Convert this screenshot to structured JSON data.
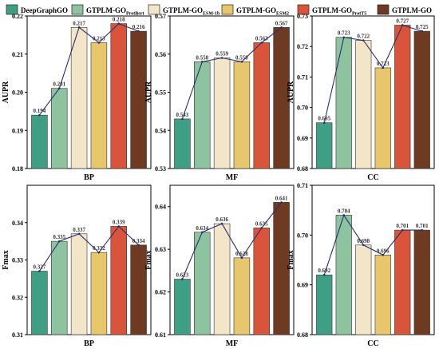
{
  "colors": [
    "#3f9f84",
    "#8ec3a0",
    "#f3e6c8",
    "#e8c66c",
    "#d9543a",
    "#6e3b22"
  ],
  "legend": [
    {
      "main": "DeepGraphGO",
      "sub": ""
    },
    {
      "main": "GTPLM-GO",
      "sub": "ProtBert"
    },
    {
      "main": "GTPLM-GO",
      "sub": "ESM-1b"
    },
    {
      "main": "GTPLM-GO",
      "sub": "ESM2"
    },
    {
      "main": "GTPLM-GO",
      "sub": "ProtT5"
    },
    {
      "main": "GTPLM-GO",
      "sub": ""
    }
  ],
  "chart_data": [
    {
      "type": "bar",
      "xlabel": "BP",
      "ylabel": "AUPR",
      "ylim": [
        0.18,
        0.22
      ],
      "yticks": [
        "0.18",
        "0.19",
        "0.20",
        "0.21",
        "0.22"
      ],
      "values": [
        0.194,
        0.201,
        0.217,
        0.213,
        0.218,
        0.216
      ],
      "labels": [
        "0.194",
        "0.201",
        "0.217",
        "0.213",
        "0.218",
        "0.216"
      ]
    },
    {
      "type": "bar",
      "xlabel": "MF",
      "ylabel": "AUPR",
      "ylim": [
        0.53,
        0.57
      ],
      "yticks": [
        "0.53",
        "0.54",
        "0.55",
        "0.56",
        "0.57"
      ],
      "values": [
        0.543,
        0.558,
        0.559,
        0.558,
        0.563,
        0.567
      ],
      "labels": [
        "0.543",
        "0.558",
        "0.559",
        "0.558",
        "0.563",
        "0.567"
      ]
    },
    {
      "type": "bar",
      "xlabel": "CC",
      "ylabel": "AUPR",
      "ylim": [
        0.68,
        0.73
      ],
      "yticks": [
        "0.68",
        "0.69",
        "0.70",
        "0.71",
        "0.72",
        "0.73"
      ],
      "values": [
        0.695,
        0.723,
        0.722,
        0.713,
        0.727,
        0.725
      ],
      "labels": [
        "0.695",
        "0.723",
        "0.722",
        "0.713",
        "0.727",
        "0.725"
      ]
    },
    {
      "type": "bar",
      "xlabel": "BP",
      "ylabel": "Fmax",
      "ylim": [
        0.31,
        0.35
      ],
      "yticks": [
        "0.31",
        "0.32",
        "0.33",
        "0.34"
      ],
      "values": [
        0.327,
        0.335,
        0.337,
        0.332,
        0.339,
        0.334
      ],
      "labels": [
        "0.327",
        "0.335",
        "0.337",
        "0.332",
        "0.339",
        "0.334"
      ]
    },
    {
      "type": "bar",
      "xlabel": "MF",
      "ylabel": "Fmax",
      "ylim": [
        0.61,
        0.645
      ],
      "yticks": [
        "0.61",
        "0.62",
        "0.63",
        "0.64"
      ],
      "values": [
        0.623,
        0.634,
        0.636,
        0.628,
        0.635,
        0.641
      ],
      "labels": [
        "0.623",
        "0.634",
        "0.636",
        "0.628",
        "0.635",
        "0.641"
      ]
    },
    {
      "type": "bar",
      "xlabel": "CC",
      "ylabel": "Fmax",
      "ylim": [
        0.68,
        0.71
      ],
      "yticks": [
        "0.68",
        "0.69",
        "0.70",
        "0.71"
      ],
      "values": [
        0.692,
        0.704,
        0.698,
        0.696,
        0.701,
        0.701
      ],
      "labels": [
        "0.692",
        "0.704",
        "0.698",
        "0.696",
        "0.701",
        "0.701"
      ]
    }
  ]
}
